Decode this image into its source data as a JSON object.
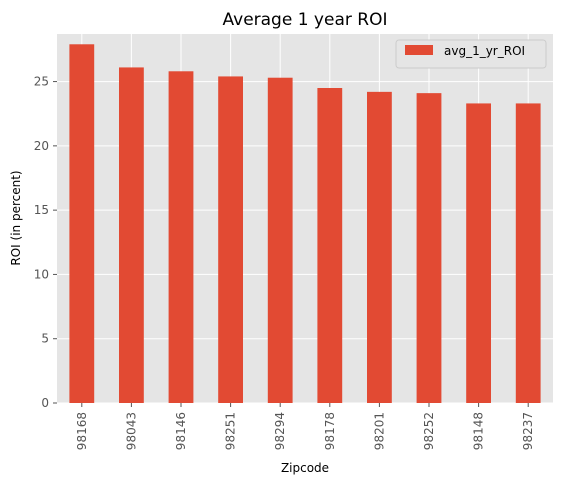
{
  "chart_data": {
    "type": "bar",
    "title": "Average 1 year ROI",
    "xlabel": "Zipcode",
    "ylabel": "ROI (in percent)",
    "categories": [
      "98168",
      "98043",
      "98146",
      "98251",
      "98294",
      "98178",
      "98201",
      "98252",
      "98148",
      "98237"
    ],
    "series": [
      {
        "name": "avg_1_yr_ROI",
        "values": [
          27.9,
          26.1,
          25.8,
          25.4,
          25.3,
          24.5,
          24.2,
          24.1,
          23.3,
          23.3
        ]
      }
    ],
    "ylim": [
      0,
      28.7
    ],
    "yticks": [
      0,
      5,
      10,
      15,
      20,
      25
    ],
    "grid": true,
    "legend": "top-right",
    "colors": {
      "bar": "#E24A33",
      "background": "#E5E5E5",
      "grid": "#FFFFFF"
    }
  }
}
